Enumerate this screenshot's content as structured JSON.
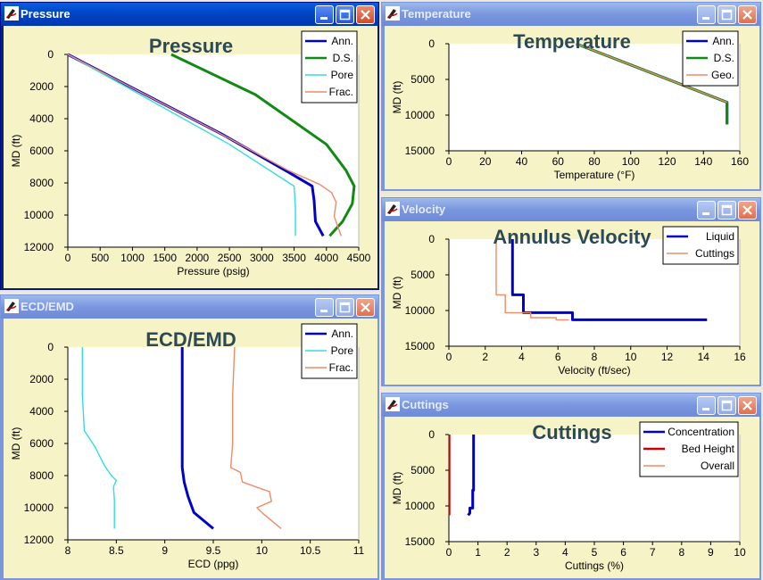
{
  "windows": {
    "pressure": {
      "title": "Pressure",
      "active": true
    },
    "temperature": {
      "title": "Temperature",
      "active": false
    },
    "ecd": {
      "title": "ECD/EMD",
      "active": false
    },
    "velocity": {
      "title": "Velocity",
      "active": false
    },
    "cuttings": {
      "title": "Cuttings",
      "active": false
    }
  },
  "chart_data": [
    {
      "id": "pressure",
      "type": "line",
      "title": "Pressure",
      "xlabel": "Pressure (psig)",
      "ylabel": "MD  (ft)",
      "xlim": [
        0,
        4500
      ],
      "ylim": [
        0,
        12000
      ],
      "y_inverted": true,
      "xticks": [
        0,
        500,
        1000,
        1500,
        2000,
        2500,
        3000,
        3500,
        4000,
        4500
      ],
      "yticks": [
        0,
        2000,
        4000,
        6000,
        8000,
        10000,
        12000
      ],
      "legend_position": "top-right",
      "series": [
        {
          "name": "Ann.",
          "color": "#0000cc",
          "x": [
            0,
            1200,
            2400,
            3400,
            3780,
            3810,
            3830,
            3950
          ],
          "y": [
            0,
            2500,
            5000,
            7300,
            8200,
            9100,
            10400,
            11300
          ]
        },
        {
          "name": "D.S.",
          "color": "#118a11",
          "x": [
            1600,
            2900,
            4000,
            4300,
            4430,
            4400,
            4250,
            4050
          ],
          "y": [
            0,
            2500,
            5600,
            7200,
            8200,
            9300,
            10400,
            11300
          ]
        },
        {
          "name": "Pore",
          "color": "#33dddd",
          "x": [
            0,
            1250,
            2500,
            3500,
            3520,
            3520
          ],
          "y": [
            0,
            2800,
            5600,
            8200,
            9500,
            11300
          ]
        },
        {
          "name": "Frac.",
          "color": "#f08a6a",
          "x": [
            0,
            1100,
            2300,
            3400,
            3900,
            4080,
            4150,
            4120,
            4230
          ],
          "y": [
            0,
            2300,
            4800,
            7200,
            8100,
            8600,
            9200,
            10100,
            11300
          ]
        }
      ]
    },
    {
      "id": "temperature",
      "type": "line",
      "title": "Temperature",
      "xlabel": "Temperature (°F)",
      "ylabel": "MD  (ft)",
      "xlim": [
        0,
        160
      ],
      "ylim": [
        0,
        15000
      ],
      "y_inverted": true,
      "xticks": [
        0,
        20,
        40,
        60,
        80,
        100,
        120,
        140,
        160
      ],
      "yticks": [
        0,
        5000,
        10000,
        15000
      ],
      "legend_position": "top-right",
      "series": [
        {
          "name": "Ann.",
          "color": "#0000cc",
          "x": [
            70,
            153,
            153
          ],
          "y": [
            0,
            8200,
            11300
          ]
        },
        {
          "name": "D.S.",
          "color": "#118a11",
          "x": [
            70,
            153,
            153
          ],
          "y": [
            0,
            8200,
            11300
          ]
        },
        {
          "name": "Geo.",
          "color": "#f08a6a",
          "x": [
            70,
            153
          ],
          "y": [
            0,
            8200
          ]
        }
      ]
    },
    {
      "id": "ecd",
      "type": "line",
      "title": "ECD/EMD",
      "xlabel": "ECD (ppg)",
      "ylabel": "MD  (ft)",
      "xlim": [
        8,
        11
      ],
      "ylim": [
        0,
        12000
      ],
      "y_inverted": true,
      "xticks": [
        8,
        8.5,
        9,
        9.5,
        10,
        10.5,
        11
      ],
      "yticks": [
        0,
        2000,
        4000,
        6000,
        8000,
        10000,
        12000
      ],
      "legend_position": "top-right",
      "series": [
        {
          "name": "Ann.",
          "color": "#0000cc",
          "x": [
            9.18,
            9.18,
            9.2,
            9.24,
            9.3,
            9.5
          ],
          "y": [
            0,
            7500,
            8400,
            9300,
            10300,
            11300
          ]
        },
        {
          "name": "Pore",
          "color": "#33dddd",
          "x": [
            8.15,
            8.15,
            8.17,
            8.28,
            8.38,
            8.45,
            8.5,
            8.47,
            8.48,
            8.48
          ],
          "y": [
            0,
            3000,
            5200,
            6200,
            7400,
            8000,
            8300,
            8700,
            9500,
            11300
          ]
        },
        {
          "name": "Frac.",
          "color": "#f08a6a",
          "x": [
            9.72,
            9.7,
            9.7,
            9.68,
            9.78,
            9.8,
            10.08,
            10.1,
            9.95,
            10.02,
            10.2
          ],
          "y": [
            0,
            3000,
            6000,
            7500,
            7800,
            8400,
            9000,
            9600,
            10000,
            10400,
            11300
          ]
        }
      ]
    },
    {
      "id": "velocity",
      "type": "line",
      "title": "Annulus Velocity",
      "xlabel": "Velocity (ft/sec)",
      "ylabel": "MD  (ft)",
      "xlim": [
        0,
        16
      ],
      "ylim": [
        0,
        15000
      ],
      "y_inverted": true,
      "xticks": [
        0,
        2,
        4,
        6,
        8,
        10,
        12,
        14,
        16
      ],
      "yticks": [
        0,
        5000,
        10000,
        15000
      ],
      "legend_position": "top-right",
      "series": [
        {
          "name": "Liquid",
          "color": "#0000cc",
          "x": [
            3.5,
            3.5,
            4.1,
            4.1,
            6.8,
            6.8,
            14.2
          ],
          "y": [
            0,
            7800,
            7800,
            10300,
            10300,
            11300,
            11300
          ]
        },
        {
          "name": "Cuttings",
          "color": "#f08a6a",
          "x": [
            2.6,
            2.6,
            3.1,
            3.1,
            4.5,
            4.5,
            5.9,
            5.9,
            6.6
          ],
          "y": [
            0,
            7800,
            7800,
            10300,
            10300,
            11000,
            11000,
            11300,
            11300
          ]
        }
      ]
    },
    {
      "id": "cuttings",
      "type": "line",
      "title": "Cuttings",
      "xlabel": "Cuttings (%)",
      "ylabel": "MD  (ft)",
      "xlim": [
        0,
        10
      ],
      "ylim": [
        0,
        15000
      ],
      "y_inverted": true,
      "xticks": [
        0,
        1,
        2,
        3,
        4,
        5,
        6,
        7,
        8,
        9,
        10
      ],
      "yticks": [
        0,
        5000,
        10000,
        15000
      ],
      "legend_position": "top-right",
      "series": [
        {
          "name": "Concentration",
          "color": "#0000cc",
          "x": [
            0.85,
            0.85,
            0.82,
            0.82,
            0.72,
            0.72,
            0.66
          ],
          "y": [
            0,
            7800,
            7800,
            10300,
            10300,
            11000,
            11300
          ]
        },
        {
          "name": "Bed Height",
          "color": "#cc0000",
          "x": [
            0.02,
            0.02
          ],
          "y": [
            0,
            11300
          ]
        },
        {
          "name": "Overall",
          "color": "#f08a6a",
          "x": [],
          "y": []
        }
      ]
    }
  ]
}
